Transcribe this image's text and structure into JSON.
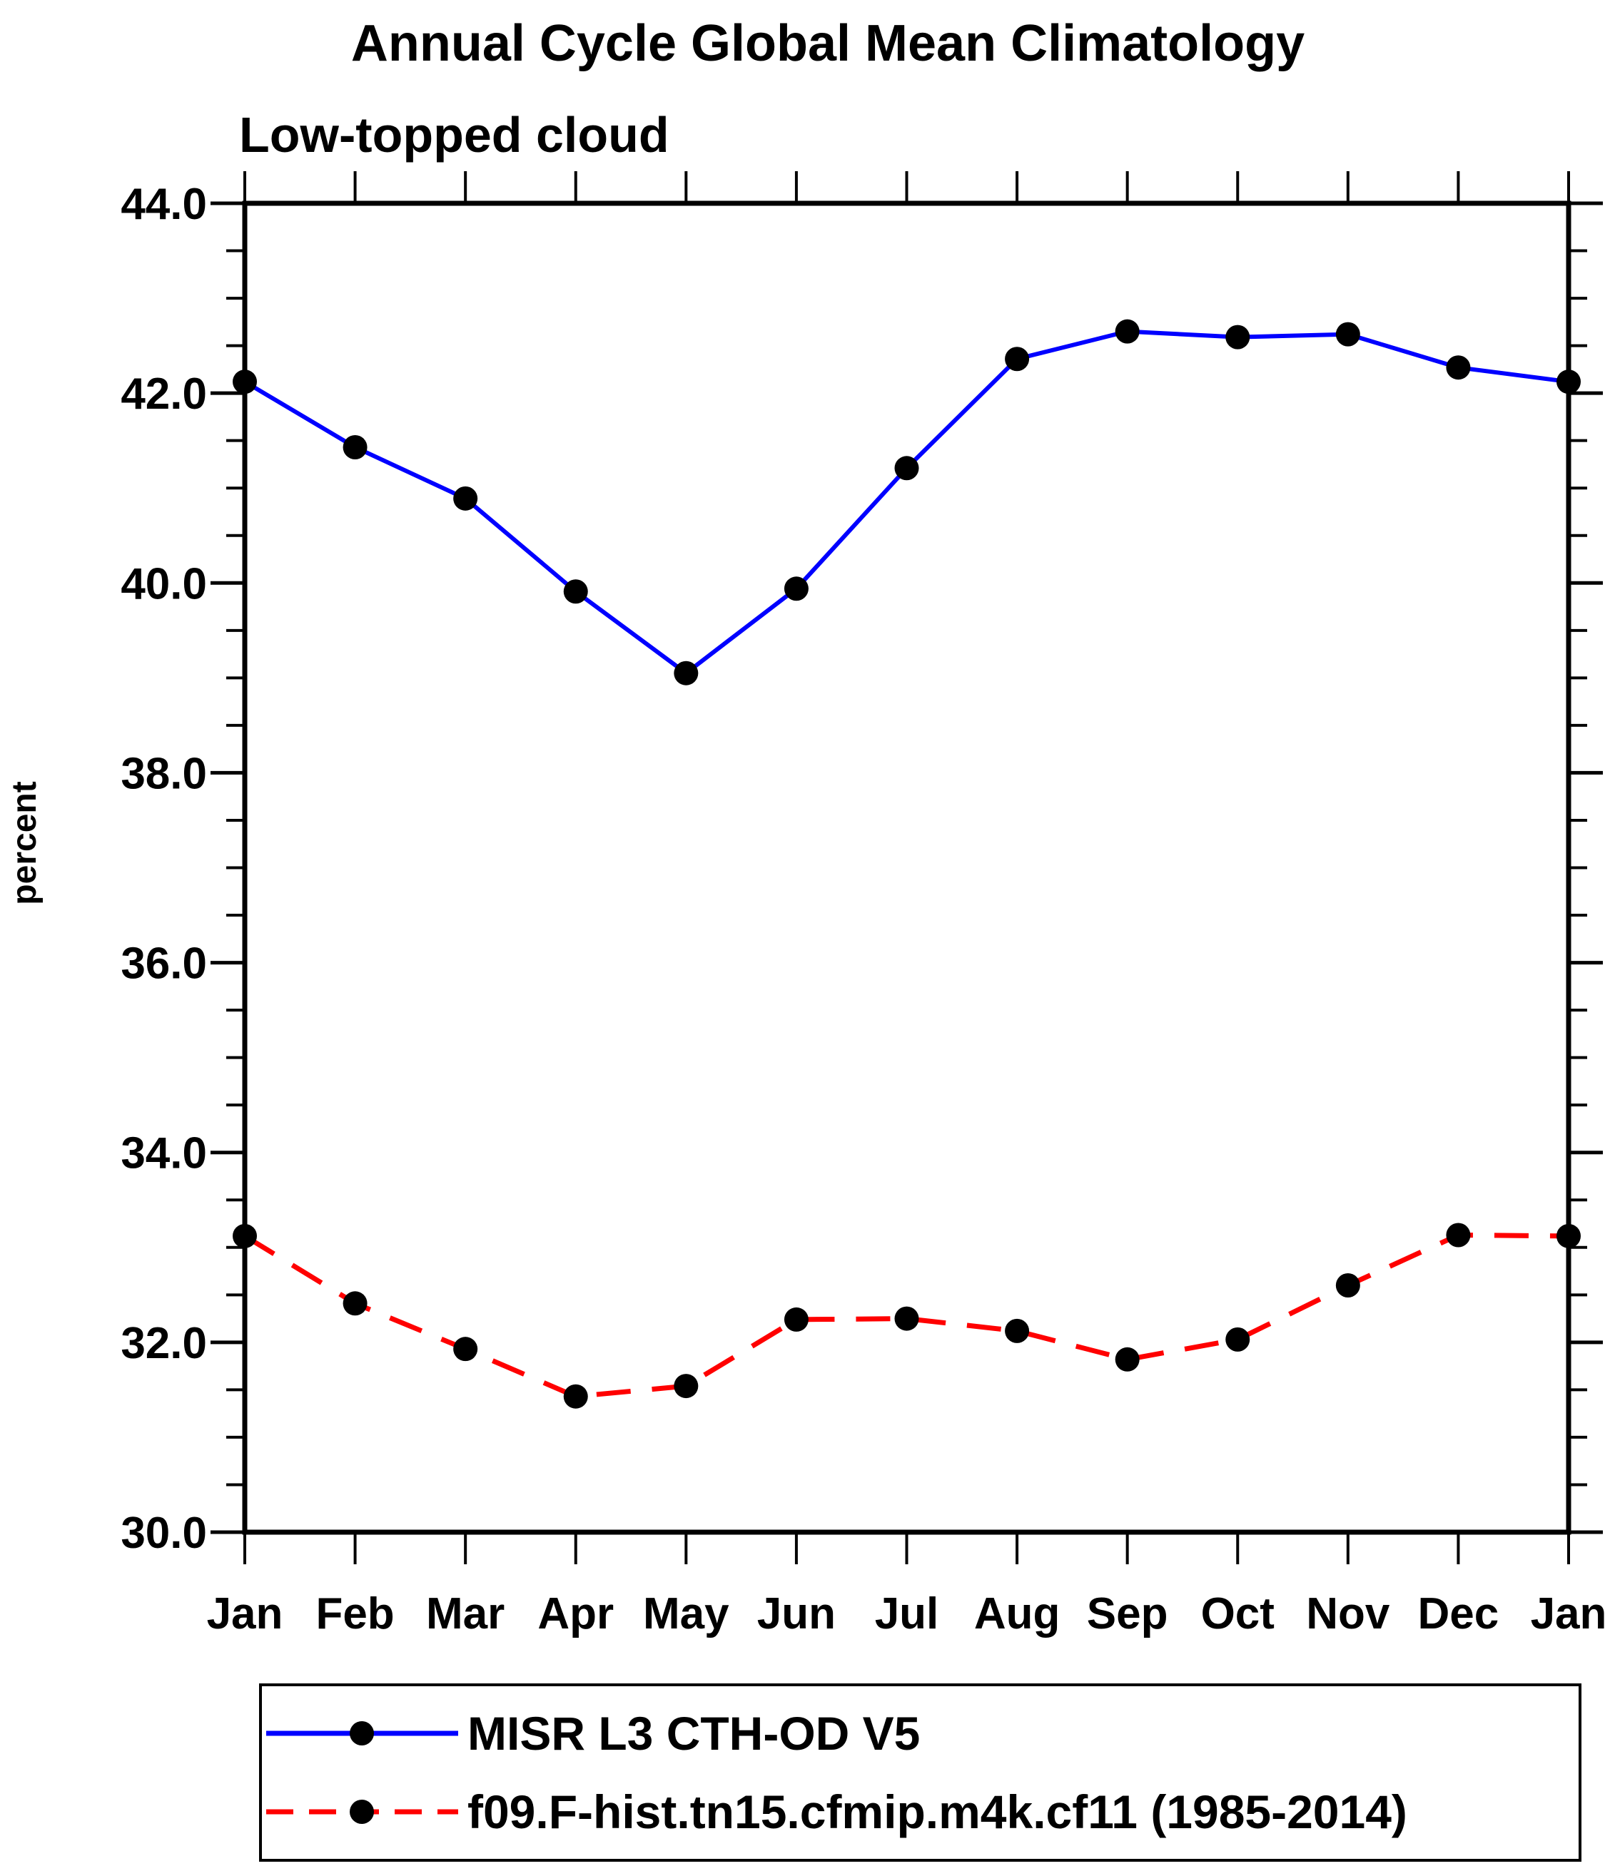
{
  "chart_data": {
    "type": "line",
    "title": "Annual Cycle Global Mean Climatology",
    "subtitle": "Low-topped cloud",
    "ylabel": "percent",
    "categories": [
      "Jan",
      "Feb",
      "Mar",
      "Apr",
      "May",
      "Jun",
      "Jul",
      "Aug",
      "Sep",
      "Oct",
      "Nov",
      "Dec",
      "Jan"
    ],
    "ylim": [
      30.0,
      44.0
    ],
    "y_major_step": 2.0,
    "y_minor_step": 0.5,
    "y_tick_labels": [
      "30.0",
      "32.0",
      "34.0",
      "36.0",
      "38.0",
      "40.0",
      "42.0",
      "44.0"
    ],
    "grid": false,
    "legend_position": "bottom",
    "marker": "filled-black-circle",
    "marker_color": "#000000",
    "axis_color": "#000000",
    "series": [
      {
        "name": "MISR L3 CTH-OD V5",
        "color": "#0000ff",
        "style": "solid",
        "values": [
          42.12,
          41.43,
          40.89,
          39.91,
          39.05,
          39.94,
          41.21,
          42.36,
          42.65,
          42.59,
          42.62,
          42.27,
          42.12
        ]
      },
      {
        "name": "f09.F-hist.tn15.cfmip.m4k.cf11 (1985-2014)",
        "color": "#ff0000",
        "style": "dashed",
        "values": [
          33.12,
          32.41,
          31.93,
          31.43,
          31.54,
          32.24,
          32.25,
          32.12,
          31.82,
          32.03,
          32.6,
          33.13,
          33.12
        ]
      }
    ]
  }
}
